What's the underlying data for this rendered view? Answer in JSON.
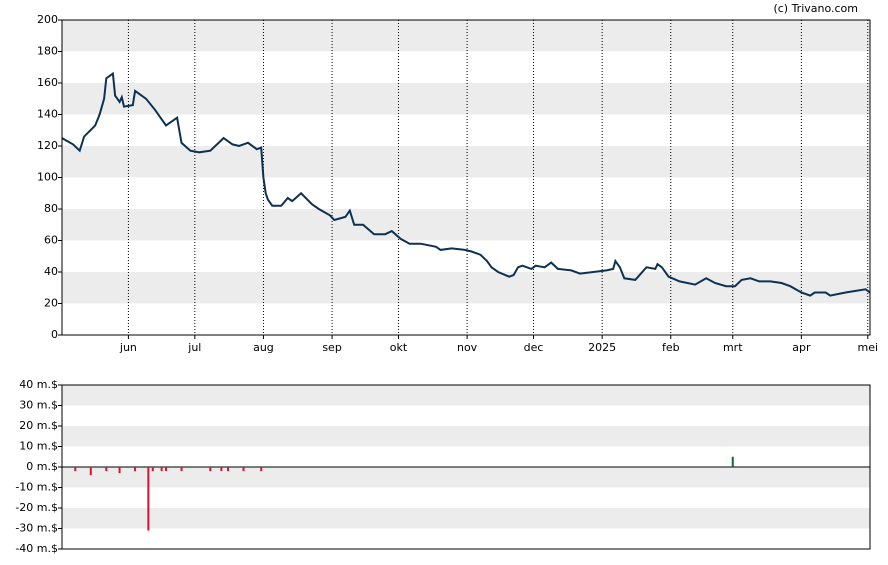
{
  "credit": "(c) Trivano.com",
  "chart_data": [
    {
      "type": "line",
      "color": "#0e3152",
      "grid": true,
      "x": [
        3,
        8,
        11,
        13,
        18,
        20,
        22,
        23,
        26,
        27,
        29,
        30,
        31,
        35,
        36,
        41,
        45,
        50,
        55,
        57,
        61,
        65,
        70,
        76,
        80,
        83,
        87,
        91,
        93,
        94,
        95,
        96,
        98,
        102,
        105,
        107,
        111,
        116,
        119,
        124,
        126,
        131,
        133,
        135,
        139,
        144,
        149,
        152,
        156,
        160,
        165,
        172,
        174,
        179,
        185,
        188,
        192,
        195,
        197,
        200,
        205,
        207,
        209,
        211,
        215,
        217,
        221,
        224,
        227,
        233,
        237,
        243,
        249,
        252,
        253,
        255,
        257,
        262,
        267,
        271,
        272,
        274,
        277,
        282,
        289,
        294,
        298,
        303,
        307,
        310,
        314,
        318,
        323,
        328,
        332,
        337,
        341,
        343,
        348,
        350,
        357,
        366,
        368
      ],
      "values": [
        125,
        121,
        117,
        126,
        133,
        140,
        150,
        163,
        166,
        152,
        148,
        151,
        145,
        146,
        155,
        150,
        143,
        133,
        138,
        122,
        117,
        116,
        117,
        125,
        121,
        120,
        122,
        118,
        119,
        100,
        90,
        86,
        82,
        82,
        87,
        85,
        90,
        83,
        80,
        76,
        73,
        75,
        79,
        70,
        70,
        64,
        64,
        66,
        61,
        58,
        58,
        56,
        54,
        55,
        54,
        53,
        51,
        47,
        43,
        40,
        37,
        38,
        43,
        44,
        42,
        44,
        43,
        46,
        42,
        41,
        39,
        40,
        41,
        42,
        47,
        43,
        36,
        35,
        43,
        42,
        45,
        43,
        37,
        34,
        32,
        36,
        33,
        31,
        31,
        35,
        36,
        34,
        34,
        33,
        31,
        27,
        25,
        27,
        27,
        25,
        27,
        29,
        27
      ],
      "xlim": [
        3,
        368
      ],
      "xticks": [
        {
          "value": 33,
          "label": "jun"
        },
        {
          "value": 63,
          "label": "jul"
        },
        {
          "value": 94,
          "label": "aug"
        },
        {
          "value": 125,
          "label": "sep"
        },
        {
          "value": 155,
          "label": "okt"
        },
        {
          "value": 186,
          "label": "nov"
        },
        {
          "value": 216,
          "label": "dec"
        },
        {
          "value": 247,
          "label": "2025"
        },
        {
          "value": 278,
          "label": "feb"
        },
        {
          "value": 306,
          "label": "mrt"
        },
        {
          "value": 337,
          "label": "apr"
        },
        {
          "value": 367,
          "label": "mei"
        }
      ],
      "ylim": [
        0,
        200
      ],
      "yticks": [
        0,
        20,
        40,
        60,
        80,
        100,
        120,
        140,
        160,
        180,
        200
      ]
    },
    {
      "type": "bar",
      "color_negative": "#dd1133",
      "color_positive": "#116633",
      "grid": true,
      "x": [
        9,
        16,
        23,
        29,
        36,
        42,
        44,
        48,
        50,
        57,
        70,
        75,
        78,
        85,
        93,
        306
      ],
      "values": [
        -2,
        -4,
        -2,
        -3,
        -2,
        -31,
        -2,
        -2,
        -2,
        -2,
        -2,
        -2,
        -2,
        -2,
        -2,
        5
      ],
      "xlim": [
        3,
        368
      ],
      "ylim": [
        -40,
        40
      ],
      "yticks": [
        {
          "value": -40,
          "label": "-40 m.$"
        },
        {
          "value": -30,
          "label": "-30 m.$"
        },
        {
          "value": -20,
          "label": "-20 m.$"
        },
        {
          "value": -10,
          "label": "-10 m.$"
        },
        {
          "value": 0,
          "label": "0 m.$"
        },
        {
          "value": 10,
          "label": "10 m.$"
        },
        {
          "value": 20,
          "label": "20 m.$"
        },
        {
          "value": 30,
          "label": "30 m.$"
        },
        {
          "value": 40,
          "label": "40 m.$"
        }
      ]
    }
  ]
}
